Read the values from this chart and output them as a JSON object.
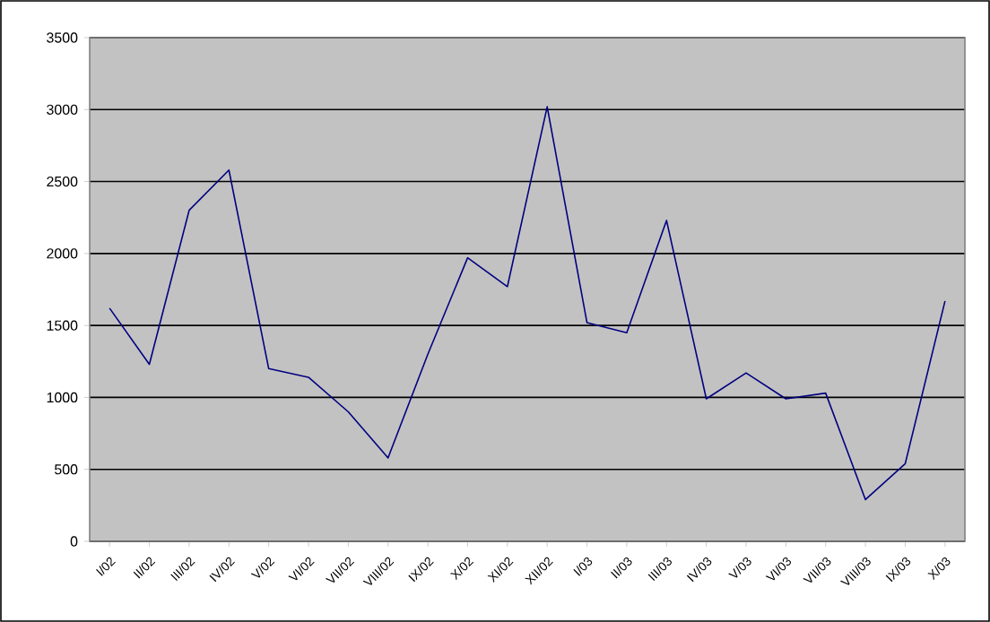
{
  "chart_data": {
    "type": "line",
    "categories": [
      "I/02",
      "II/02",
      "III/02",
      "IV/02",
      "V/02",
      "VI/02",
      "VII/02",
      "VIII/02",
      "IX/02",
      "X/02",
      "XI/02",
      "XII/02",
      "I/03",
      "II/03",
      "III/03",
      "IV/03",
      "V/03",
      "VI/03",
      "VII/03",
      "VIII/03",
      "IX/03",
      "X/03"
    ],
    "series": [
      {
        "color": "#000080",
        "values": [
          1620,
          1230,
          2300,
          2580,
          1200,
          1140,
          900,
          580,
          1300,
          1970,
          1770,
          3020,
          1520,
          1450,
          2230,
          990,
          1170,
          990,
          1030,
          290,
          540,
          1670
        ]
      }
    ],
    "ylim": [
      0,
      3500
    ],
    "yticks": [
      0,
      500,
      1000,
      1500,
      2000,
      2500,
      3000,
      3500
    ],
    "grid": "y"
  }
}
